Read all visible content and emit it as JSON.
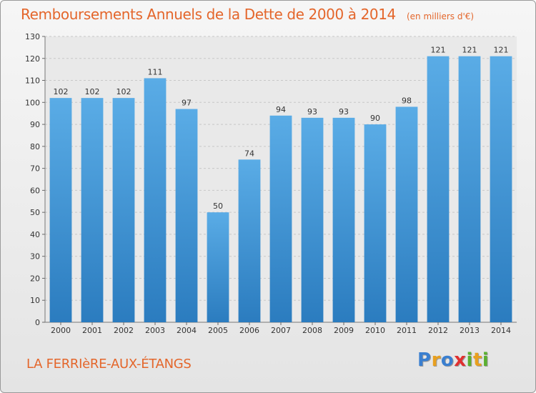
{
  "title": "Remboursements Annuels de la Dette de 2000 à 2014",
  "title_unit": "(en milliers d'€)",
  "commune": "LA FERRIèRE-AUX-ÉTANGS",
  "logo": {
    "letters": [
      "P",
      "r",
      "o",
      "x",
      "i",
      "t",
      "i"
    ],
    "colors": [
      "#3a7fd0",
      "#e8a020",
      "#3a7fd0",
      "#e03030",
      "#5ab030",
      "#e8a020",
      "#5ab030"
    ]
  },
  "colors": {
    "bar_top": "#5aace6",
    "bar_bottom": "#2b7cbf",
    "title": "#e4662b",
    "axis_text": "#333333"
  },
  "chart_data": {
    "type": "bar",
    "title": "Remboursements Annuels de la Dette de 2000 à 2014",
    "xlabel": "",
    "ylabel": "",
    "ylim": [
      0,
      130
    ],
    "ytick_step": 10,
    "grid": true,
    "categories": [
      "2000",
      "2001",
      "2002",
      "2003",
      "2004",
      "2005",
      "2006",
      "2007",
      "2008",
      "2009",
      "2010",
      "2011",
      "2012",
      "2013",
      "2014"
    ],
    "values": [
      102,
      102,
      102,
      111,
      97,
      50,
      74,
      94,
      93,
      93,
      90,
      98,
      121,
      121,
      121
    ]
  }
}
